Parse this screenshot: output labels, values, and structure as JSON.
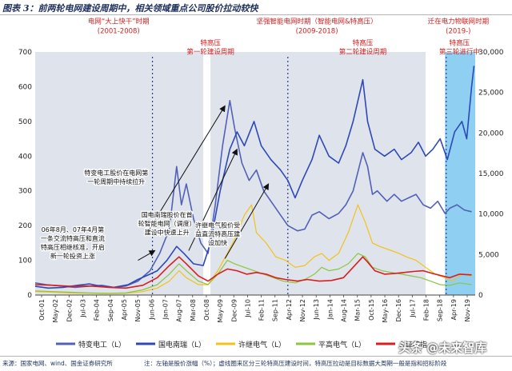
{
  "header": {
    "title": "图表 3：前两轮电网建设周期中，相关领域重点公司股价拉动较快"
  },
  "footer": {
    "source": "来源：国家电网、wind、国金证券研究所",
    "note": "注：左轴是股价涨幅（%）；虚线圈来区分三轮特高压建设时间，特高压拉动是目标数据大周期一般是指和招标阶段"
  },
  "watermark": "头条 @未来智库",
  "chart_data": {
    "type": "line",
    "title": "",
    "x_ticks": [
      "Oct-01",
      "May-02",
      "Dec-02",
      "Jul-03",
      "Feb-04",
      "Sep-04",
      "Apr-05",
      "Nov-05",
      "Jun-06",
      "Jan-07",
      "Aug-07",
      "Mar-08",
      "Oct-08",
      "May-09",
      "Dec-09",
      "Jul-10",
      "Feb-11",
      "Sep-11",
      "Apr-12",
      "Nov-12",
      "Jun-13",
      "Jan-14",
      "Aug-14",
      "Mar-15",
      "Oct-15",
      "May-16",
      "Dec-16",
      "Jul-17",
      "Feb-18",
      "Sep-18",
      "Apr-19",
      "Nov-19"
    ],
    "xlim": [
      2001.75,
      2019.95
    ],
    "y_left": {
      "min": 0,
      "max": 700,
      "ticks": [
        "0",
        "100",
        "200",
        "300",
        "400",
        "500",
        "600",
        "700"
      ]
    },
    "y_right": {
      "min": 0,
      "max": 30000,
      "ticks": [
        "0",
        "5,000",
        "10,000",
        "15,000",
        "20,000",
        "25,000",
        "30,000"
      ]
    },
    "shaded_periods": [
      {
        "start": 2001.75,
        "end": 2008.7,
        "color": "#dfe3ec"
      },
      {
        "start": 2009.0,
        "end": 2017.9,
        "color": "#dfe3ec"
      },
      {
        "start": 2018.7,
        "end": 2019.95,
        "color": "#8fd0f2"
      }
    ],
    "dashed_lines": [
      2006.6,
      2012.2,
      2018.75
    ],
    "period_labels": [
      {
        "lines": [
          "电网“大上快干”时期",
          "(2001-2008)"
        ],
        "x": 2005.2
      },
      {
        "lines": [
          "坚强智能电网时期（智能电网&特高压）",
          "(2009-2018)"
        ],
        "x": 2013.4
      },
      {
        "lines": [
          "迁在电力物联网时期",
          "(2019-)"
        ],
        "x": 2019.25
      }
    ],
    "uhv_labels": [
      {
        "lines": [
          "特高压",
          "第一轮建设周期"
        ],
        "x": 2009.0
      },
      {
        "lines": [
          "特高压",
          "第二轮建设周期"
        ],
        "x": 2015.3
      },
      {
        "lines": [
          "特高压",
          "第三轮进行中"
        ],
        "x": 2019.3
      }
    ],
    "annotations": [
      {
        "lines": [
          "特变电工股价在电网第",
          "一轮周期中持续拉升"
        ],
        "x": 2005.1,
        "y": 345,
        "from": [
          2006.3,
          170
        ],
        "to": [
          2009.6,
          545
        ]
      },
      {
        "lines": [
          "国电南瑞股价在首",
          "轮智能电网（调度）",
          "建设中快速上升"
        ],
        "x": 2007.2,
        "y": 225,
        "from": [
          2008.1,
          128
        ],
        "to": [
          2010.1,
          420
        ]
      },
      {
        "lines": [
          "许继电气股价受",
          "益直流特高压建",
          "设加快"
        ],
        "x": 2009.3,
        "y": 195,
        "from": [
          2009.6,
          105
        ],
        "to": [
          2011.4,
          320
        ]
      },
      {
        "lines": [
          "06年8月、07年4月第",
          "一条交流特高压和直流",
          "特高压相继核准，开启",
          "新一轮投资上涨"
        ],
        "x": 2003.3,
        "y": 182,
        "from": [
          2006.0,
          100
        ],
        "to": [
          2006.7,
          128
        ]
      }
    ],
    "series": [
      {
        "name": "特变电工（L）",
        "color": "#5260b7",
        "axis": "left",
        "width": 1.6,
        "points": [
          [
            2001.75,
            35
          ],
          [
            2002.2,
            30
          ],
          [
            2002.8,
            26
          ],
          [
            2003.4,
            22
          ],
          [
            2003.9,
            25
          ],
          [
            2004.5,
            28
          ],
          [
            2005.0,
            22
          ],
          [
            2005.5,
            26
          ],
          [
            2006.0,
            40
          ],
          [
            2006.5,
            70
          ],
          [
            2006.9,
            120
          ],
          [
            2007.3,
            190
          ],
          [
            2007.6,
            370
          ],
          [
            2007.8,
            260
          ],
          [
            2008.0,
            320
          ],
          [
            2008.3,
            220
          ],
          [
            2008.6,
            150
          ],
          [
            2008.9,
            120
          ],
          [
            2009.2,
            260
          ],
          [
            2009.5,
            430
          ],
          [
            2009.8,
            560
          ],
          [
            2010.0,
            480
          ],
          [
            2010.3,
            380
          ],
          [
            2010.6,
            330
          ],
          [
            2010.9,
            360
          ],
          [
            2011.2,
            300
          ],
          [
            2011.6,
            260
          ],
          [
            2011.9,
            230
          ],
          [
            2012.2,
            200
          ],
          [
            2012.6,
            185
          ],
          [
            2012.9,
            190
          ],
          [
            2013.2,
            230
          ],
          [
            2013.5,
            240
          ],
          [
            2013.9,
            220
          ],
          [
            2014.3,
            235
          ],
          [
            2014.6,
            260
          ],
          [
            2014.9,
            300
          ],
          [
            2015.3,
            410
          ],
          [
            2015.5,
            370
          ],
          [
            2015.7,
            290
          ],
          [
            2015.9,
            300
          ],
          [
            2016.3,
            270
          ],
          [
            2016.6,
            290
          ],
          [
            2016.9,
            270
          ],
          [
            2017.2,
            280
          ],
          [
            2017.5,
            290
          ],
          [
            2017.8,
            260
          ],
          [
            2018.1,
            250
          ],
          [
            2018.4,
            270
          ],
          [
            2018.7,
            235
          ],
          [
            2018.9,
            250
          ],
          [
            2019.2,
            260
          ],
          [
            2019.5,
            245
          ],
          [
            2019.8,
            240
          ]
        ]
      },
      {
        "name": "国电南瑞（L）",
        "color": "#2d48b7",
        "axis": "left",
        "width": 1.6,
        "points": [
          [
            2001.75,
            25
          ],
          [
            2002.3,
            20
          ],
          [
            2002.9,
            22
          ],
          [
            2003.5,
            28
          ],
          [
            2004.0,
            32
          ],
          [
            2004.5,
            25
          ],
          [
            2005.0,
            22
          ],
          [
            2005.6,
            30
          ],
          [
            2006.0,
            45
          ],
          [
            2006.5,
            60
          ],
          [
            2006.8,
            70
          ],
          [
            2007.2,
            100
          ],
          [
            2007.6,
            140
          ],
          [
            2007.9,
            120
          ],
          [
            2008.3,
            90
          ],
          [
            2008.7,
            85
          ],
          [
            2009.0,
            150
          ],
          [
            2009.4,
            300
          ],
          [
            2009.8,
            420
          ],
          [
            2010.1,
            470
          ],
          [
            2010.4,
            430
          ],
          [
            2010.8,
            500
          ],
          [
            2011.1,
            430
          ],
          [
            2011.5,
            390
          ],
          [
            2011.9,
            360
          ],
          [
            2012.2,
            330
          ],
          [
            2012.5,
            280
          ],
          [
            2012.8,
            330
          ],
          [
            2013.2,
            390
          ],
          [
            2013.5,
            460
          ],
          [
            2013.9,
            400
          ],
          [
            2014.3,
            380
          ],
          [
            2014.6,
            430
          ],
          [
            2014.9,
            500
          ],
          [
            2015.3,
            620
          ],
          [
            2015.5,
            500
          ],
          [
            2015.8,
            420
          ],
          [
            2016.2,
            400
          ],
          [
            2016.6,
            420
          ],
          [
            2016.9,
            390
          ],
          [
            2017.3,
            410
          ],
          [
            2017.6,
            440
          ],
          [
            2017.9,
            400
          ],
          [
            2018.2,
            420
          ],
          [
            2018.5,
            450
          ],
          [
            2018.8,
            390
          ],
          [
            2019.1,
            470
          ],
          [
            2019.4,
            500
          ],
          [
            2019.6,
            450
          ],
          [
            2019.8,
            600
          ],
          [
            2019.9,
            660
          ]
        ]
      },
      {
        "name": "许继电气（L）",
        "color": "#f2c21b",
        "axis": "left",
        "width": 1.2,
        "points": [
          [
            2001.75,
            10
          ],
          [
            2002.5,
            8
          ],
          [
            2003.2,
            6
          ],
          [
            2004.0,
            5
          ],
          [
            2004.8,
            4
          ],
          [
            2005.5,
            5
          ],
          [
            2006.2,
            10
          ],
          [
            2006.8,
            20
          ],
          [
            2007.3,
            40
          ],
          [
            2007.7,
            70
          ],
          [
            2008.0,
            50
          ],
          [
            2008.5,
            30
          ],
          [
            2008.9,
            30
          ],
          [
            2009.3,
            70
          ],
          [
            2009.7,
            120
          ],
          [
            2010.0,
            160
          ],
          [
            2010.4,
            230
          ],
          [
            2010.7,
            260
          ],
          [
            2010.9,
            180
          ],
          [
            2011.3,
            150
          ],
          [
            2011.7,
            110
          ],
          [
            2012.1,
            100
          ],
          [
            2012.5,
            80
          ],
          [
            2012.9,
            85
          ],
          [
            2013.3,
            110
          ],
          [
            2013.6,
            120
          ],
          [
            2013.9,
            100
          ],
          [
            2014.3,
            120
          ],
          [
            2014.7,
            180
          ],
          [
            2015.1,
            260
          ],
          [
            2015.4,
            210
          ],
          [
            2015.7,
            150
          ],
          [
            2016.0,
            140
          ],
          [
            2016.4,
            130
          ],
          [
            2016.8,
            120
          ],
          [
            2017.1,
            110
          ],
          [
            2017.5,
            100
          ],
          [
            2017.9,
            80
          ],
          [
            2018.3,
            60
          ],
          [
            2018.7,
            50
          ],
          [
            2019.0,
            40
          ],
          [
            2019.4,
            60
          ],
          [
            2019.8,
            55
          ]
        ]
      },
      {
        "name": "平高电气（L）",
        "color": "#8cc63f",
        "axis": "left",
        "width": 1.2,
        "points": [
          [
            2001.75,
            12
          ],
          [
            2002.5,
            10
          ],
          [
            2003.2,
            8
          ],
          [
            2004.0,
            6
          ],
          [
            2004.8,
            5
          ],
          [
            2005.5,
            6
          ],
          [
            2006.2,
            15
          ],
          [
            2006.8,
            30
          ],
          [
            2007.3,
            60
          ],
          [
            2007.7,
            90
          ],
          [
            2008.0,
            70
          ],
          [
            2008.5,
            40
          ],
          [
            2008.9,
            30
          ],
          [
            2009.3,
            60
          ],
          [
            2009.7,
            100
          ],
          [
            2010.0,
            90
          ],
          [
            2010.4,
            80
          ],
          [
            2010.8,
            70
          ],
          [
            2011.2,
            60
          ],
          [
            2011.6,
            50
          ],
          [
            2012.0,
            40
          ],
          [
            2012.5,
            35
          ],
          [
            2012.9,
            45
          ],
          [
            2013.3,
            60
          ],
          [
            2013.6,
            80
          ],
          [
            2013.9,
            70
          ],
          [
            2014.3,
            75
          ],
          [
            2014.7,
            90
          ],
          [
            2015.1,
            120
          ],
          [
            2015.4,
            110
          ],
          [
            2015.7,
            80
          ],
          [
            2016.1,
            70
          ],
          [
            2016.5,
            65
          ],
          [
            2016.9,
            60
          ],
          [
            2017.3,
            55
          ],
          [
            2017.7,
            50
          ],
          [
            2018.1,
            40
          ],
          [
            2018.5,
            30
          ],
          [
            2018.9,
            28
          ],
          [
            2019.3,
            35
          ],
          [
            2019.8,
            30
          ]
        ]
      },
      {
        "name": "上证综指",
        "color": "#d81e1e",
        "axis": "left",
        "width": 1.6,
        "points": [
          [
            2001.75,
            30
          ],
          [
            2002.5,
            28
          ],
          [
            2003.2,
            25
          ],
          [
            2004.0,
            26
          ],
          [
            2004.8,
            22
          ],
          [
            2005.5,
            20
          ],
          [
            2006.2,
            28
          ],
          [
            2006.8,
            50
          ],
          [
            2007.3,
            85
          ],
          [
            2007.7,
            110
          ],
          [
            2008.0,
            90
          ],
          [
            2008.5,
            55
          ],
          [
            2008.9,
            40
          ],
          [
            2009.3,
            60
          ],
          [
            2009.7,
            75
          ],
          [
            2010.1,
            70
          ],
          [
            2010.5,
            60
          ],
          [
            2010.9,
            65
          ],
          [
            2011.3,
            60
          ],
          [
            2011.7,
            50
          ],
          [
            2012.1,
            45
          ],
          [
            2012.6,
            40
          ],
          [
            2013.0,
            45
          ],
          [
            2013.5,
            40
          ],
          [
            2014.0,
            42
          ],
          [
            2014.5,
            50
          ],
          [
            2014.9,
            80
          ],
          [
            2015.3,
            110
          ],
          [
            2015.5,
            95
          ],
          [
            2015.8,
            70
          ],
          [
            2016.2,
            60
          ],
          [
            2016.6,
            62
          ],
          [
            2017.0,
            65
          ],
          [
            2017.4,
            68
          ],
          [
            2017.8,
            70
          ],
          [
            2018.2,
            62
          ],
          [
            2018.6,
            55
          ],
          [
            2018.9,
            50
          ],
          [
            2019.3,
            60
          ],
          [
            2019.8,
            58
          ]
        ]
      }
    ]
  }
}
